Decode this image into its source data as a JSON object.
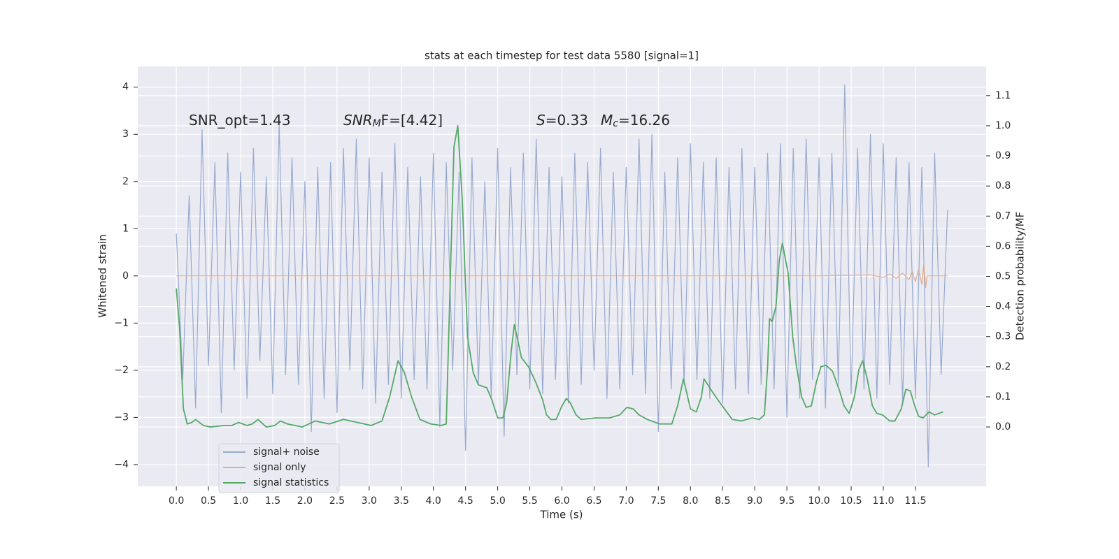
{
  "chart_data": {
    "type": "line",
    "title": "stats at each timestep for test data 5580 [signal=1]",
    "xlabel": "Time (s)",
    "ylabel": "Whitened strain",
    "y2label": "Detection probability/MF",
    "xlim": [
      -0.6,
      12.6
    ],
    "ylim": [
      -4.46,
      4.44
    ],
    "y2lim": [
      -0.197,
      1.197
    ],
    "xticks": [
      {
        "value": 0,
        "label": "0.0"
      },
      0.5,
      {
        "value": 1,
        "label": "1.0"
      },
      1.5,
      {
        "value": 2,
        "label": "2.0"
      },
      2.5,
      {
        "value": 3,
        "label": "3.0"
      },
      3.5,
      {
        "value": 4,
        "label": "4.0"
      },
      4.5,
      {
        "value": 5,
        "label": "5.0"
      },
      5.5,
      {
        "value": 6,
        "label": "6.0"
      },
      6.5,
      {
        "value": 7,
        "label": "7.0"
      },
      7.5,
      {
        "value": 8,
        "label": "8.0"
      },
      8.5,
      {
        "value": 9,
        "label": "9.0"
      },
      9.5,
      {
        "value": 10,
        "label": "10.0"
      },
      10.5,
      {
        "value": 11,
        "label": "11.0"
      },
      11.5
    ],
    "yticks": [
      {
        "value": -4,
        "label": "−4"
      },
      {
        "value": -3,
        "label": "−3"
      },
      {
        "value": -2,
        "label": "−2"
      },
      {
        "value": -1,
        "label": "−1"
      },
      0,
      1,
      2,
      3,
      4
    ],
    "y2ticks": [
      {
        "value": 0,
        "label": "0.0"
      },
      0.1,
      0.2,
      0.3,
      0.4,
      0.5,
      0.6,
      0.7,
      0.8,
      0.9,
      {
        "value": 1,
        "label": "1.0"
      },
      1.1
    ],
    "grid": true,
    "legend": "lower left",
    "series": [
      {
        "name": "signal+ noise",
        "color": "#99aacf",
        "x": [
          0.0,
          0.1,
          0.2,
          0.3,
          0.4,
          0.5,
          0.6,
          0.7,
          0.8,
          0.9,
          1.0,
          1.1,
          1.2,
          1.3,
          1.4,
          1.5,
          1.6,
          1.7,
          1.8,
          1.9,
          2.0,
          2.1,
          2.2,
          2.3,
          2.4,
          2.5,
          2.6,
          2.7,
          2.8,
          2.9,
          3.0,
          3.1,
          3.2,
          3.3,
          3.4,
          3.5,
          3.6,
          3.7,
          3.8,
          3.9,
          4.0,
          4.1,
          4.2,
          4.3,
          4.4,
          4.5,
          4.6,
          4.7,
          4.8,
          4.9,
          5.0,
          5.1,
          5.2,
          5.3,
          5.4,
          5.5,
          5.6,
          5.7,
          5.8,
          5.9,
          6.0,
          6.1,
          6.2,
          6.3,
          6.4,
          6.5,
          6.6,
          6.7,
          6.8,
          6.9,
          7.0,
          7.1,
          7.2,
          7.3,
          7.4,
          7.5,
          7.6,
          7.7,
          7.8,
          7.9,
          8.0,
          8.1,
          8.2,
          8.3,
          8.4,
          8.5,
          8.6,
          8.7,
          8.8,
          8.9,
          9.0,
          9.1,
          9.2,
          9.3,
          9.4,
          9.5,
          9.6,
          9.7,
          9.8,
          9.9,
          10.0,
          10.1,
          10.2,
          10.3,
          10.4,
          10.5,
          10.6,
          10.7,
          10.8,
          10.9,
          11.0,
          11.1,
          11.2,
          11.3,
          11.4,
          11.5,
          11.6,
          11.7,
          11.8,
          11.9,
          12.0
        ],
        "values": [
          0.9,
          -2.2,
          1.7,
          -2.8,
          3.1,
          -1.9,
          2.4,
          -2.9,
          2.6,
          -2.0,
          2.2,
          -2.6,
          2.7,
          -1.8,
          2.1,
          -2.5,
          3.2,
          -2.1,
          2.5,
          -2.3,
          2.0,
          -3.3,
          2.3,
          -2.6,
          2.4,
          -2.9,
          2.7,
          -2.0,
          2.9,
          -2.4,
          2.5,
          -2.7,
          2.2,
          -2.3,
          2.8,
          -2.6,
          2.3,
          -2.2,
          2.1,
          -2.4,
          2.6,
          -3.2,
          2.4,
          -2.0,
          2.2,
          -3.7,
          2.5,
          -2.3,
          2.0,
          -2.6,
          2.7,
          -3.4,
          2.3,
          -2.1,
          2.6,
          -2.4,
          2.9,
          -2.5,
          2.3,
          -2.2,
          2.1,
          -2.7,
          2.6,
          -2.3,
          2.4,
          -2.0,
          2.7,
          -2.6,
          2.2,
          -2.4,
          2.3,
          -2.1,
          2.9,
          -2.5,
          3.0,
          -3.3,
          2.2,
          -2.4,
          2.5,
          -2.3,
          2.8,
          -2.2,
          2.4,
          -2.6,
          2.5,
          -2.7,
          2.3,
          -2.4,
          2.7,
          -2.5,
          2.3,
          -2.3,
          2.6,
          -2.4,
          2.8,
          -3.0,
          2.7,
          -2.6,
          2.9,
          -2.2,
          2.5,
          -2.8,
          2.6,
          -2.3,
          4.05,
          -2.5,
          2.7,
          -2.4,
          3.0,
          -2.6,
          2.8,
          -2.3,
          2.5,
          -2.7,
          2.4,
          -2.6,
          2.3,
          -4.05,
          2.6,
          -2.1,
          1.4
        ]
      },
      {
        "name": "signal only",
        "color": "#e3aa8a",
        "x": [
          0,
          10.0,
          10.8,
          11.0,
          11.1,
          11.2,
          11.3,
          11.4,
          11.45,
          11.5,
          11.55,
          11.6,
          11.63,
          11.66,
          11.68,
          12.0
        ],
        "values": [
          0,
          0,
          0.02,
          -0.03,
          0.04,
          -0.05,
          0.06,
          -0.08,
          0.1,
          -0.12,
          0.14,
          -0.18,
          0.25,
          -0.25,
          0,
          0
        ]
      },
      {
        "name": "signal statistics",
        "color": "#55a868",
        "axis": "y2",
        "x": [
          0.0,
          0.05,
          0.11,
          0.17,
          0.24,
          0.3,
          0.42,
          0.53,
          0.75,
          0.86,
          0.97,
          1.1,
          1.18,
          1.27,
          1.4,
          1.53,
          1.62,
          1.73,
          1.96,
          2.16,
          2.38,
          2.6,
          2.82,
          3.03,
          3.2,
          3.32,
          3.45,
          3.55,
          3.66,
          3.79,
          3.96,
          4.12,
          4.2,
          4.32,
          4.38,
          4.45,
          4.53,
          4.62,
          4.7,
          4.83,
          4.91,
          5.0,
          5.08,
          5.14,
          5.21,
          5.26,
          5.37,
          5.48,
          5.59,
          5.7,
          5.76,
          5.83,
          5.91,
          6.0,
          6.07,
          6.13,
          6.22,
          6.3,
          6.52,
          6.74,
          6.9,
          7.01,
          7.11,
          7.2,
          7.33,
          7.52,
          7.71,
          7.8,
          7.89,
          8.0,
          8.09,
          8.17,
          8.21,
          8.33,
          8.46,
          8.65,
          8.79,
          8.96,
          9.07,
          9.15,
          9.2,
          9.23,
          9.27,
          9.33,
          9.38,
          9.43,
          9.52,
          9.59,
          9.65,
          9.73,
          9.8,
          9.88,
          9.96,
          10.03,
          10.11,
          10.21,
          10.32,
          10.39,
          10.47,
          10.55,
          10.62,
          10.68,
          10.75,
          10.83,
          10.9,
          10.99,
          11.1,
          11.18,
          11.28,
          11.35,
          11.42,
          11.49,
          11.55,
          11.62,
          11.71,
          11.8,
          11.93
        ],
        "values": [
          0.46,
          0.33,
          0.06,
          0.01,
          0.015,
          0.025,
          0.005,
          0.0,
          0.005,
          0.005,
          0.015,
          0.005,
          0.01,
          0.025,
          0.0,
          0.005,
          0.02,
          0.01,
          0.0,
          0.02,
          0.01,
          0.025,
          0.015,
          0.005,
          0.02,
          0.1,
          0.22,
          0.18,
          0.1,
          0.025,
          0.01,
          0.005,
          0.01,
          0.93,
          1.0,
          0.75,
          0.3,
          0.18,
          0.14,
          0.13,
          0.09,
          0.03,
          0.03,
          0.08,
          0.25,
          0.34,
          0.23,
          0.2,
          0.15,
          0.09,
          0.04,
          0.025,
          0.025,
          0.07,
          0.095,
          0.08,
          0.04,
          0.025,
          0.03,
          0.03,
          0.04,
          0.065,
          0.06,
          0.04,
          0.025,
          0.01,
          0.01,
          0.07,
          0.16,
          0.06,
          0.05,
          0.1,
          0.16,
          0.12,
          0.08,
          0.025,
          0.02,
          0.03,
          0.025,
          0.04,
          0.2,
          0.36,
          0.35,
          0.4,
          0.55,
          0.61,
          0.51,
          0.3,
          0.2,
          0.1,
          0.065,
          0.07,
          0.15,
          0.2,
          0.205,
          0.185,
          0.12,
          0.07,
          0.045,
          0.1,
          0.19,
          0.22,
          0.16,
          0.07,
          0.045,
          0.04,
          0.02,
          0.02,
          0.06,
          0.125,
          0.12,
          0.07,
          0.035,
          0.03,
          0.05,
          0.04,
          0.05
        ]
      }
    ],
    "annotations": [
      {
        "segments": [
          {
            "text": "SNR_opt=1.43"
          }
        ]
      },
      {
        "segments": [
          {
            "text": "SNR",
            "style": "italic"
          },
          {
            "text": "M",
            "style": "italic-sub"
          },
          {
            "text": "F=[4.42]"
          }
        ]
      },
      {
        "segments": [
          {
            "text": "S",
            "style": "italic"
          },
          {
            "text": "=0.33"
          }
        ]
      },
      {
        "segments": [
          {
            "text": "M",
            "style": "italic"
          },
          {
            "text": "c",
            "style": "italic-sub"
          },
          {
            "text": "=16.26"
          }
        ]
      }
    ]
  }
}
